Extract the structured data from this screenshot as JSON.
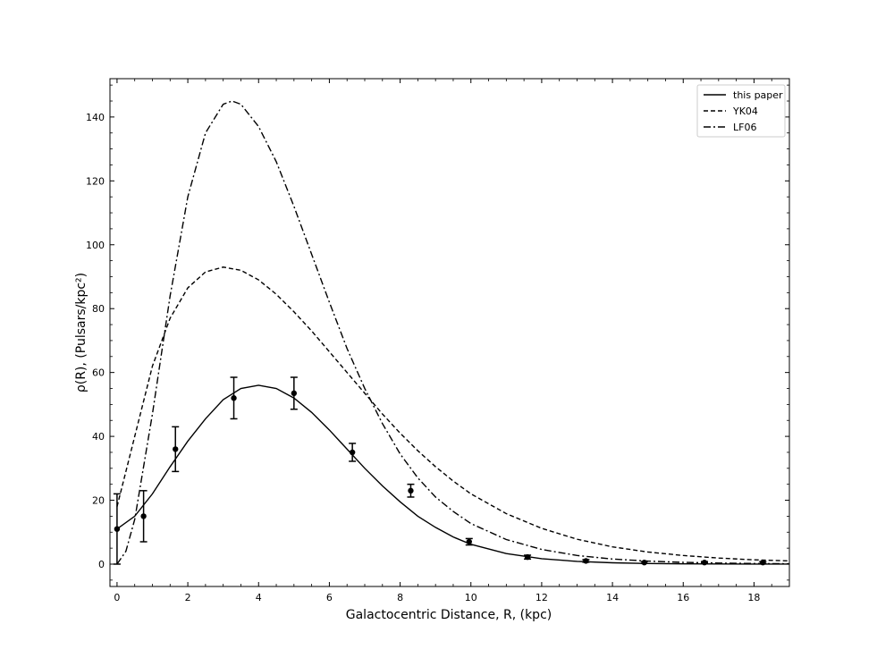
{
  "chart_data": {
    "type": "line",
    "xlabel": "Galactocentric Distance, R, (kpc)",
    "ylabel": "ρ(R), (Pulsars/kpc²)",
    "xlim": [
      -0.2,
      19.0
    ],
    "ylim": [
      -7,
      152
    ],
    "xticks": [
      0,
      2,
      4,
      6,
      8,
      10,
      12,
      14,
      16,
      18
    ],
    "yticks": [
      0,
      20,
      40,
      60,
      80,
      100,
      120,
      140
    ],
    "legend_position": "top-right",
    "series": [
      {
        "name": "this paper",
        "style": "solid",
        "x": [
          0,
          0.5,
          1,
          1.5,
          2,
          2.5,
          3,
          3.5,
          4,
          4.5,
          5,
          5.5,
          6,
          6.5,
          7,
          7.5,
          8,
          8.5,
          9,
          9.5,
          10,
          11,
          12,
          13,
          14,
          15,
          16,
          17,
          18,
          19
        ],
        "y": [
          11.0,
          15.0,
          22.0,
          30.5,
          38.5,
          45.5,
          51.5,
          55.0,
          56.0,
          55.0,
          52.0,
          47.5,
          42.0,
          36.0,
          30.0,
          24.5,
          19.5,
          15.0,
          11.5,
          8.5,
          6.2,
          3.3,
          1.7,
          0.85,
          0.42,
          0.2,
          0.1,
          0.05,
          0.02,
          0.01
        ]
      },
      {
        "name": "YK04",
        "style": "dashed",
        "x": [
          0,
          0.5,
          1,
          1.5,
          2,
          2.5,
          3,
          3.5,
          4,
          4.5,
          5,
          5.5,
          6,
          6.5,
          7,
          7.5,
          8,
          8.5,
          9,
          9.5,
          10,
          11,
          12,
          13,
          14,
          15,
          16,
          17,
          18,
          19
        ],
        "y": [
          18.0,
          40.0,
          62.0,
          77.0,
          86.5,
          91.5,
          93.0,
          92.0,
          89.0,
          84.5,
          79.0,
          73.0,
          66.5,
          60.0,
          53.5,
          47.0,
          41.0,
          35.5,
          30.5,
          26.0,
          22.0,
          15.8,
          11.2,
          7.8,
          5.4,
          3.8,
          2.7,
          1.9,
          1.35,
          1.0
        ]
      },
      {
        "name": "LF06",
        "style": "dashdot",
        "x": [
          0,
          0.25,
          0.5,
          1,
          1.5,
          2,
          2.5,
          3,
          3.25,
          3.5,
          4,
          4.5,
          5,
          5.5,
          6,
          6.5,
          7,
          7.5,
          8,
          8.5,
          9,
          9.5,
          10,
          11,
          12,
          13,
          14,
          15,
          16,
          17,
          18,
          19
        ],
        "y": [
          0,
          4.0,
          14.0,
          47.0,
          84.0,
          115.0,
          135.0,
          144.0,
          145.0,
          144.0,
          137.0,
          126.0,
          112.0,
          97.0,
          82.0,
          67.5,
          55.0,
          44.0,
          34.5,
          27.0,
          21.0,
          16.5,
          12.7,
          7.7,
          4.6,
          2.7,
          1.6,
          0.95,
          0.55,
          0.33,
          0.2,
          0.12
        ]
      }
    ],
    "points": {
      "x": [
        0,
        0.75,
        1.65,
        3.3,
        5.0,
        6.65,
        8.3,
        9.95,
        11.6,
        13.25,
        14.9,
        16.6,
        18.25
      ],
      "y": [
        11.0,
        15.0,
        36.0,
        52.0,
        53.5,
        35.0,
        23.0,
        7.0,
        2.2,
        1.0,
        0.5,
        0.5,
        0.5
      ],
      "err": [
        11.0,
        8.0,
        7.0,
        6.5,
        5.0,
        2.8,
        2.0,
        1.0,
        0.6,
        0.4,
        0.3,
        0.3,
        0.3
      ]
    }
  }
}
